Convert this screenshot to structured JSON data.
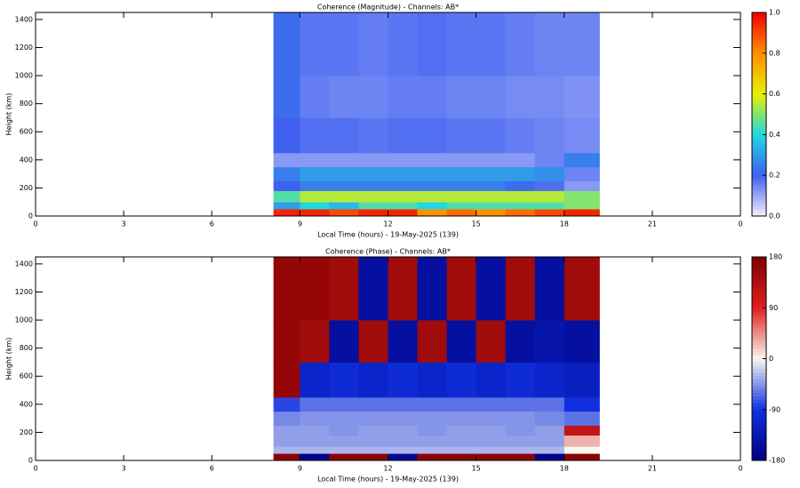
{
  "chart_data": [
    {
      "type": "heatmap",
      "title": "Coherence (Magnitude) - Channels: AB*",
      "xlabel": "Local Time (hours) - 19-May-2025 (139)",
      "ylabel": "Height (km)",
      "xlim": [
        0,
        24
      ],
      "xticks": [
        0,
        3,
        6,
        9,
        12,
        15,
        18,
        21,
        {
          "value": 24,
          "label": "0"
        }
      ],
      "ylim": [
        0,
        1450
      ],
      "yticks": [
        0,
        200,
        400,
        600,
        800,
        1000,
        1200,
        1400
      ],
      "x_edges": [
        8.1,
        9,
        10,
        11,
        12,
        13,
        14,
        15,
        16,
        17,
        18,
        19.2
      ],
      "y_edges": [
        0,
        50,
        100,
        180,
        250,
        350,
        450,
        700,
        1000,
        1450
      ],
      "z": [
        [
          0.95,
          0.95,
          0.9,
          0.95,
          0.95,
          0.8,
          0.85,
          0.8,
          0.85,
          0.9,
          0.95
        ],
        [
          0.3,
          0.4,
          0.35,
          0.45,
          0.45,
          0.4,
          0.45,
          0.45,
          0.45,
          0.45,
          0.5
        ],
        [
          0.45,
          0.55,
          0.55,
          0.55,
          0.55,
          0.55,
          0.55,
          0.55,
          0.55,
          0.55,
          0.5
        ],
        [
          0.2,
          0.25,
          0.25,
          0.25,
          0.25,
          0.25,
          0.25,
          0.25,
          0.22,
          0.18,
          0.12
        ],
        [
          0.25,
          0.3,
          0.3,
          0.3,
          0.3,
          0.3,
          0.3,
          0.3,
          0.3,
          0.28,
          0.15
        ],
        [
          0.12,
          0.12,
          0.12,
          0.12,
          0.12,
          0.12,
          0.12,
          0.12,
          0.12,
          0.15,
          0.25
        ],
        [
          0.2,
          0.18,
          0.18,
          0.17,
          0.18,
          0.18,
          0.17,
          0.17,
          0.16,
          0.15,
          0.14
        ],
        [
          0.22,
          0.16,
          0.15,
          0.15,
          0.16,
          0.16,
          0.15,
          0.15,
          0.14,
          0.14,
          0.13
        ],
        [
          0.22,
          0.17,
          0.17,
          0.16,
          0.17,
          0.18,
          0.17,
          0.17,
          0.16,
          0.15,
          0.15
        ]
      ],
      "zlim": [
        0,
        1
      ],
      "zticks": [
        {
          "value": 0,
          "label": "0.0"
        },
        0.2,
        0.4,
        0.6,
        0.8,
        {
          "value": 1,
          "label": "1.0"
        }
      ],
      "colorscale": [
        "#f4f0fa",
        "#4060f0",
        "#20d8e0",
        "#e8f000",
        "#ff9000",
        "#f00000"
      ]
    },
    {
      "type": "heatmap",
      "title": "Coherence (Phase) - Channels: AB*",
      "xlabel": "Local Time (hours) - 19-May-2025 (139)",
      "ylabel": "Height (km)",
      "xlim": [
        0,
        24
      ],
      "xticks": [
        0,
        3,
        6,
        9,
        12,
        15,
        18,
        21,
        {
          "value": 24,
          "label": "0"
        }
      ],
      "ylim": [
        0,
        1450
      ],
      "yticks": [
        0,
        200,
        400,
        600,
        800,
        1000,
        1200,
        1400
      ],
      "x_edges": [
        8.1,
        9,
        10,
        11,
        12,
        13,
        14,
        15,
        16,
        17,
        18,
        19.2
      ],
      "y_edges": [
        0,
        50,
        100,
        180,
        250,
        350,
        450,
        700,
        1000,
        1450
      ],
      "z": [
        [
          170,
          -170,
          170,
          170,
          -160,
          170,
          170,
          170,
          170,
          -170,
          170
        ],
        [
          -30,
          -30,
          -30,
          -30,
          -30,
          -30,
          -30,
          -30,
          -30,
          -30,
          0
        ],
        [
          -40,
          -40,
          -40,
          -40,
          -40,
          -40,
          -40,
          -40,
          -40,
          -40,
          30
        ],
        [
          -40,
          -40,
          -45,
          -40,
          -40,
          -45,
          -40,
          -40,
          -45,
          -40,
          120
        ],
        [
          -50,
          -45,
          -45,
          -45,
          -45,
          -45,
          -45,
          -45,
          -45,
          -50,
          -60
        ],
        [
          -80,
          -60,
          -60,
          -60,
          -60,
          -60,
          -60,
          -60,
          -60,
          -60,
          -90
        ],
        [
          160,
          -110,
          -100,
          -110,
          -100,
          -110,
          -100,
          -110,
          -100,
          -110,
          -120
        ],
        [
          160,
          150,
          -150,
          150,
          -150,
          150,
          -150,
          150,
          -150,
          -140,
          -150
        ],
        [
          160,
          160,
          150,
          -150,
          150,
          -150,
          150,
          -150,
          150,
          -150,
          150
        ]
      ],
      "zlim": [
        -180,
        180
      ],
      "zticks": [
        -180,
        -90,
        0,
        90,
        180
      ],
      "colorscale": [
        "#000080",
        "#1030e0",
        "#f8f8f0",
        "#e02020",
        "#800000"
      ]
    }
  ]
}
